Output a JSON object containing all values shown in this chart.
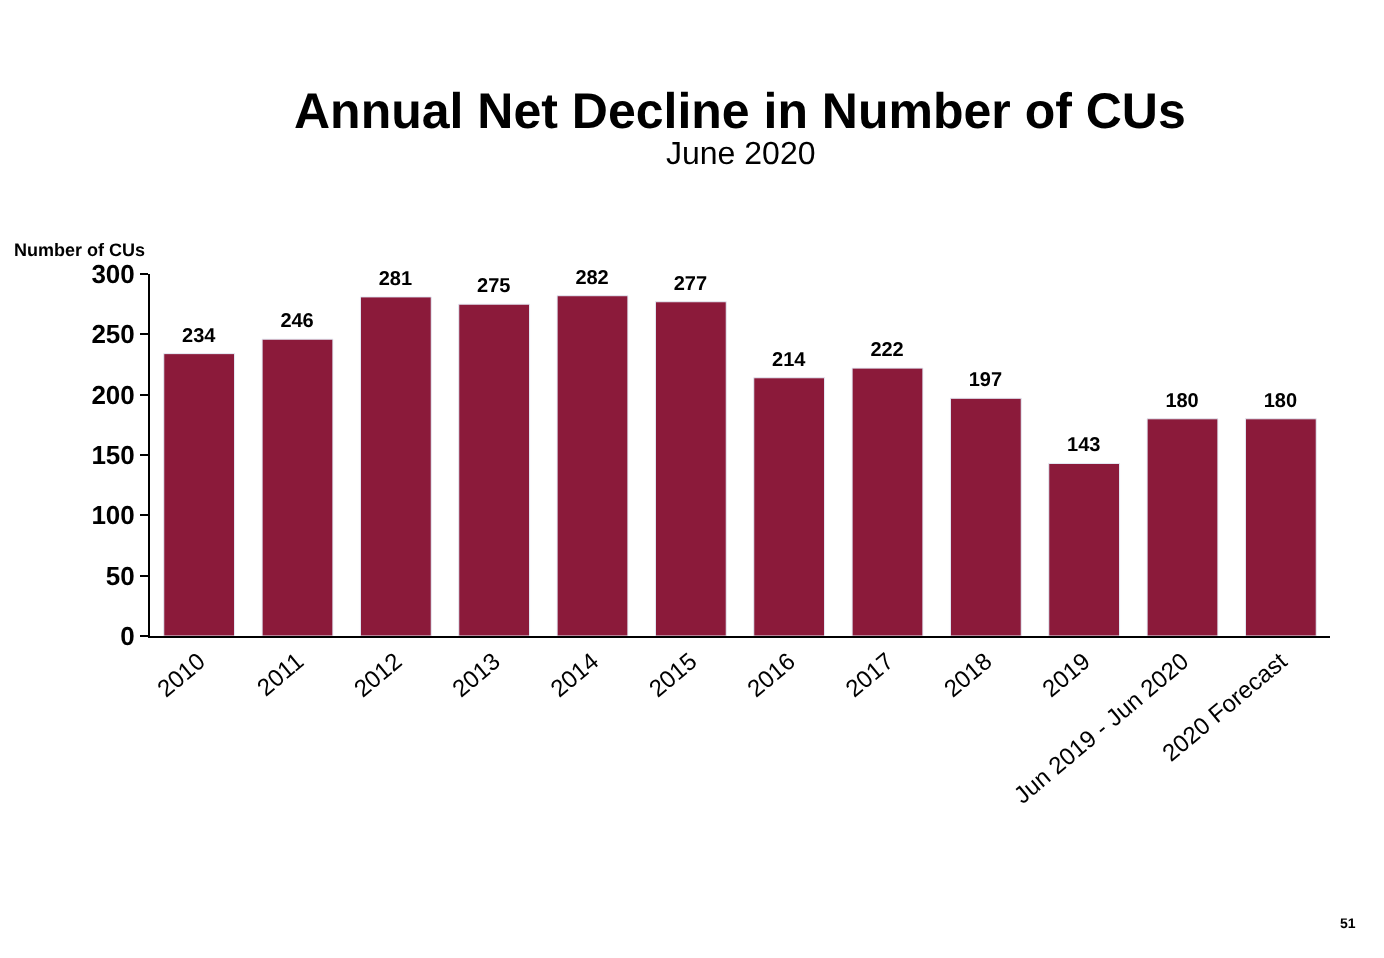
{
  "chart_data": {
    "type": "bar",
    "title": "Annual Net Decline in Number of CUs",
    "subtitle": "June 2020",
    "ylabel": "Number of CUs",
    "categories": [
      "2010",
      "2011",
      "2012",
      "2013",
      "2014",
      "2015",
      "2016",
      "2017",
      "2018",
      "2019",
      "Jun 2019 - Jun 2020",
      "2020 Forecast"
    ],
    "values": [
      234,
      246,
      281,
      275,
      282,
      277,
      214,
      222,
      197,
      143,
      180,
      180
    ],
    "color": "#8b1a3a",
    "ylim": [
      0,
      300
    ],
    "yticks": [
      0,
      50,
      100,
      150,
      200,
      250,
      300
    ],
    "data_labels": true,
    "annotations": [
      "51"
    ]
  }
}
